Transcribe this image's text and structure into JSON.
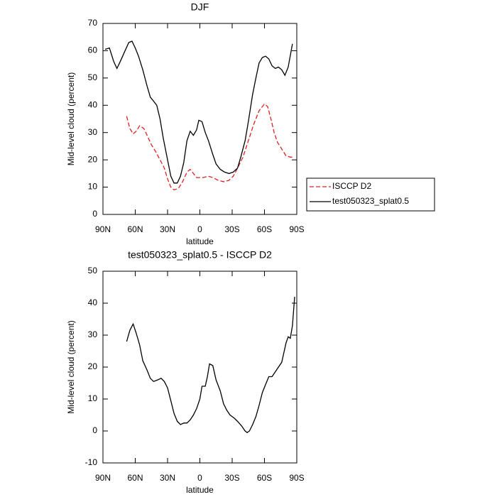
{
  "chart_data": [
    {
      "type": "line",
      "title": "DJF",
      "xlabel": "latitude",
      "ylabel": "Mid-level cloud (percent)",
      "xlim": [
        90,
        -90
      ],
      "xticks": [
        {
          "value": 90,
          "label": "90N"
        },
        {
          "value": 60,
          "label": "60N"
        },
        {
          "value": 30,
          "label": "30N"
        },
        0,
        {
          "value": -30,
          "label": "30S"
        },
        {
          "value": -60,
          "label": "60S"
        },
        {
          "value": -90,
          "label": "90S"
        }
      ],
      "ylim": [
        0,
        70
      ],
      "yticks": [
        0,
        10,
        20,
        30,
        40,
        50,
        60,
        70
      ],
      "legend": "right",
      "series": [
        {
          "name": "ISCCP D2",
          "color": "#e02020",
          "line_style": "dashed",
          "x": [
            68,
            65,
            62,
            59,
            56,
            52,
            49,
            45,
            41,
            37,
            33,
            30,
            27,
            24,
            20,
            16,
            12,
            9,
            6,
            3,
            -3,
            -8,
            -12,
            -17,
            -22,
            -27,
            -31,
            -35,
            -40,
            -45,
            -50,
            -55,
            -60,
            -63,
            -66,
            -69,
            -72,
            -76,
            -80,
            -84,
            -86
          ],
          "values": [
            36,
            31.5,
            29.5,
            30.5,
            32.5,
            31.5,
            29,
            25.5,
            23,
            20,
            17,
            13,
            10,
            9,
            9.5,
            12,
            15.5,
            16.5,
            15,
            13.5,
            13.5,
            14,
            13.5,
            12.5,
            12,
            12.5,
            14,
            17,
            21,
            27,
            33,
            38,
            40.5,
            39.5,
            35,
            30,
            26.5,
            24,
            21.5,
            21,
            21
          ]
        },
        {
          "name": "test050323_splat0.5",
          "color": "#000000",
          "line_style": "solid",
          "x": [
            88,
            84,
            80,
            77,
            74,
            70,
            66,
            63,
            60,
            57,
            53,
            49,
            46,
            43,
            40,
            37,
            34,
            30,
            27,
            24,
            21,
            18,
            15,
            12,
            9,
            6,
            3,
            1,
            -2,
            -5,
            -8,
            -12,
            -15,
            -19,
            -23,
            -27,
            -31,
            -35,
            -38,
            -42,
            -45,
            -49,
            -52,
            -55,
            -58,
            -61,
            -64,
            -67,
            -70,
            -73,
            -76,
            -79,
            -82,
            -86
          ],
          "values": [
            60.5,
            61,
            56,
            53.5,
            56,
            59.5,
            63,
            63.5,
            61,
            58,
            53,
            47,
            43,
            41.5,
            40,
            35,
            28,
            20,
            14,
            11.5,
            11.5,
            14,
            19,
            27,
            30.5,
            29,
            31,
            34.5,
            34,
            30,
            27,
            22,
            18.5,
            16.5,
            15.5,
            15,
            15.5,
            17,
            21,
            27,
            34,
            44,
            50,
            55.5,
            57.5,
            58,
            57,
            54.5,
            53.5,
            54,
            53,
            51,
            54,
            62.5
          ]
        }
      ]
    },
    {
      "type": "line",
      "title": "test050323_splat0.5 - ISCCP D2",
      "xlabel": "latitude",
      "ylabel": "Mid-level cloud (percent)",
      "xlim": [
        90,
        -90
      ],
      "xticks": [
        {
          "value": 90,
          "label": "90N"
        },
        {
          "value": 60,
          "label": "60N"
        },
        {
          "value": 30,
          "label": "30N"
        },
        0,
        {
          "value": -30,
          "label": "30S"
        },
        {
          "value": -60,
          "label": "60S"
        },
        {
          "value": -90,
          "label": "90S"
        }
      ],
      "ylim": [
        -10,
        50
      ],
      "yticks": [
        -10,
        0,
        10,
        20,
        30,
        40,
        50
      ],
      "color": "#000000",
      "x": [
        68,
        65,
        62,
        59,
        56,
        53,
        49,
        46,
        43,
        39,
        36,
        33,
        30,
        27,
        24,
        21,
        18,
        15,
        12,
        9,
        6,
        3,
        0,
        -2,
        -5,
        -7,
        -9,
        -12,
        -15,
        -19,
        -22,
        -25,
        -28,
        -32,
        -35,
        -39,
        -42,
        -44,
        -46,
        -49,
        -52,
        -55,
        -58,
        -61,
        -64,
        -67,
        -70,
        -73,
        -76,
        -80,
        -82,
        -84,
        -86,
        -88
      ],
      "values": [
        28,
        31.5,
        33.5,
        30.5,
        27,
        22,
        19,
        16.5,
        15.5,
        16,
        16.5,
        15.5,
        13.5,
        9.5,
        5.5,
        3,
        2,
        2.5,
        2.5,
        3.5,
        5,
        7,
        10,
        14,
        14,
        17,
        21,
        20.5,
        16,
        12.5,
        8.5,
        6.5,
        5,
        4,
        3,
        1.5,
        0,
        -0.5,
        0,
        2,
        4.5,
        8,
        12,
        14.5,
        17,
        17,
        18.5,
        20,
        21.5,
        27.5,
        29.5,
        29,
        33,
        42
      ]
    }
  ]
}
